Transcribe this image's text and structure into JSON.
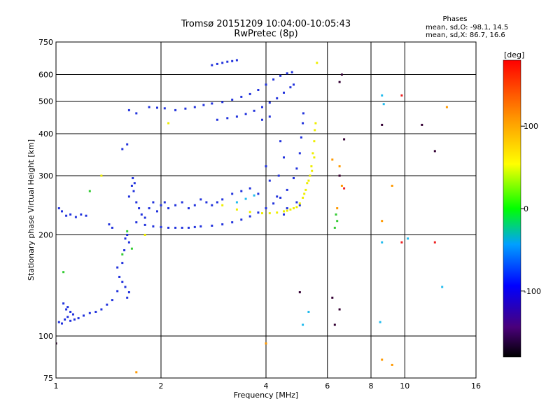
{
  "chart_data": {
    "type": "scatter",
    "title": "Tromsø 20151209 10:04:00-10:05:43",
    "subtitle": "RwPretec (8p)",
    "stats": {
      "heading": "Phases",
      "line_o": "mean, sd,O: -98.1, 14.5",
      "line_x": "mean, sd,X:  86.7, 16.6"
    },
    "xlabel": "Frequency [MHz]",
    "ylabel": "Stationary phase Virtual Height [km]",
    "x_scale": "log",
    "y_scale": "log",
    "xlim": [
      1,
      16
    ],
    "ylim": [
      75,
      750
    ],
    "x_ticks": [
      1,
      2,
      4,
      6,
      8,
      10,
      16
    ],
    "x_tick_labels": [
      "1",
      "2",
      "4",
      "6",
      "8",
      "10",
      "16"
    ],
    "y_ticks": [
      75,
      100,
      200,
      300,
      400,
      500,
      600,
      750
    ],
    "y_tick_labels": [
      "75",
      "100",
      "200",
      "300",
      "400",
      "500",
      "600",
      "750"
    ],
    "grid": true,
    "colorbar": {
      "label": "[deg]",
      "range": [
        -180,
        180
      ],
      "ticks": [
        100,
        0,
        -100
      ],
      "tick_labels": [
        "100",
        "0",
        "-100"
      ]
    },
    "colors": {
      "blue": "#2233dd",
      "yellow": "#eeee00",
      "cyan": "#22bbee",
      "green": "#33cc33",
      "orange": "#ff9900",
      "red": "#ee2222",
      "dark": "#330033",
      "gray": "#888888"
    },
    "series": [
      {
        "color": "blue",
        "points": [
          [
            1.02,
            110
          ],
          [
            1.04,
            109
          ],
          [
            1.06,
            112
          ],
          [
            1.08,
            114
          ],
          [
            1.1,
            111
          ],
          [
            1.13,
            112
          ],
          [
            1.16,
            113
          ],
          [
            1.2,
            115
          ],
          [
            1.25,
            117
          ],
          [
            1.3,
            118
          ],
          [
            1.35,
            120
          ],
          [
            1.4,
            124
          ],
          [
            1.45,
            128
          ],
          [
            1.5,
            136
          ],
          [
            1.52,
            150
          ],
          [
            1.55,
            165
          ],
          [
            1.57,
            180
          ],
          [
            1.58,
            195
          ],
          [
            1.6,
            200
          ],
          [
            1.62,
            190
          ],
          [
            1.58,
            140
          ],
          [
            1.6,
            130
          ],
          [
            1.62,
            135
          ],
          [
            1.55,
            145
          ],
          [
            1.5,
            160
          ],
          [
            1.05,
            125
          ],
          [
            1.08,
            122
          ],
          [
            1.1,
            118
          ],
          [
            1.12,
            116
          ],
          [
            1.07,
            120
          ],
          [
            1.02,
            240
          ],
          [
            1.04,
            235
          ],
          [
            1.07,
            228
          ],
          [
            1.1,
            230
          ],
          [
            1.14,
            226
          ],
          [
            1.18,
            230
          ],
          [
            1.22,
            228
          ],
          [
            1.62,
            260
          ],
          [
            1.65,
            280
          ],
          [
            1.67,
            270
          ],
          [
            1.7,
            250
          ],
          [
            1.73,
            240
          ],
          [
            1.76,
            230
          ],
          [
            1.8,
            225
          ],
          [
            1.85,
            240
          ],
          [
            1.9,
            250
          ],
          [
            1.95,
            235
          ],
          [
            2.0,
            245
          ],
          [
            2.05,
            250
          ],
          [
            2.1,
            240
          ],
          [
            2.2,
            245
          ],
          [
            2.3,
            250
          ],
          [
            2.4,
            240
          ],
          [
            2.5,
            245
          ],
          [
            2.6,
            255
          ],
          [
            2.7,
            250
          ],
          [
            2.8,
            245
          ],
          [
            2.9,
            250
          ],
          [
            3.0,
            255
          ],
          [
            3.2,
            265
          ],
          [
            3.4,
            270
          ],
          [
            3.6,
            275
          ],
          [
            3.8,
            265
          ],
          [
            1.66,
            295
          ],
          [
            1.68,
            285
          ],
          [
            1.7,
            218
          ],
          [
            1.8,
            214
          ],
          [
            1.9,
            212
          ],
          [
            2.0,
            211
          ],
          [
            2.1,
            210
          ],
          [
            2.2,
            210
          ],
          [
            2.3,
            210
          ],
          [
            2.4,
            210
          ],
          [
            2.5,
            211
          ],
          [
            2.6,
            212
          ],
          [
            2.8,
            213
          ],
          [
            3.0,
            215
          ],
          [
            3.2,
            218
          ],
          [
            3.4,
            222
          ],
          [
            3.6,
            227
          ],
          [
            3.8,
            233
          ],
          [
            4.0,
            240
          ],
          [
            4.2,
            248
          ],
          [
            4.4,
            258
          ],
          [
            4.6,
            272
          ],
          [
            4.8,
            295
          ],
          [
            4.9,
            315
          ],
          [
            5.0,
            350
          ],
          [
            5.05,
            390
          ],
          [
            5.1,
            430
          ],
          [
            5.12,
            460
          ],
          [
            2.8,
            640
          ],
          [
            2.9,
            645
          ],
          [
            3.0,
            650
          ],
          [
            3.1,
            655
          ],
          [
            3.2,
            658
          ],
          [
            3.3,
            662
          ],
          [
            2.9,
            440
          ],
          [
            3.1,
            445
          ],
          [
            3.3,
            450
          ],
          [
            3.5,
            458
          ],
          [
            3.7,
            468
          ],
          [
            3.9,
            480
          ],
          [
            4.1,
            495
          ],
          [
            4.3,
            510
          ],
          [
            4.5,
            530
          ],
          [
            4.7,
            550
          ],
          [
            4.8,
            560
          ],
          [
            1.85,
            480
          ],
          [
            1.95,
            478
          ],
          [
            2.05,
            476
          ],
          [
            2.2,
            470
          ],
          [
            2.35,
            475
          ],
          [
            2.5,
            480
          ],
          [
            2.65,
            487
          ],
          [
            2.8,
            492
          ],
          [
            3.0,
            497
          ],
          [
            3.2,
            505
          ],
          [
            3.4,
            515
          ],
          [
            3.6,
            525
          ],
          [
            3.8,
            540
          ],
          [
            4.0,
            560
          ],
          [
            4.2,
            580
          ],
          [
            4.4,
            595
          ],
          [
            4.6,
            605
          ],
          [
            4.75,
            610
          ],
          [
            1.45,
            210
          ],
          [
            1.42,
            215
          ],
          [
            4.5,
            230
          ],
          [
            4.6,
            240
          ],
          [
            4.3,
            260
          ],
          [
            4.1,
            290
          ],
          [
            4.0,
            320
          ],
          [
            4.5,
            340
          ],
          [
            4.4,
            380
          ],
          [
            4.35,
            300
          ],
          [
            1.55,
            360
          ],
          [
            1.6,
            372
          ],
          [
            5.0,
            245
          ],
          [
            4.9,
            250
          ],
          [
            3.9,
            440
          ],
          [
            4.1,
            450
          ],
          [
            1.7,
            460
          ],
          [
            1.62,
            470
          ]
        ]
      },
      {
        "color": "yellow",
        "points": [
          [
            3.0,
            245
          ],
          [
            3.3,
            238
          ],
          [
            3.6,
            234
          ],
          [
            3.9,
            232
          ],
          [
            4.1,
            232
          ],
          [
            4.3,
            233
          ],
          [
            4.5,
            235
          ],
          [
            4.7,
            238
          ],
          [
            4.9,
            242
          ],
          [
            5.0,
            248
          ],
          [
            5.1,
            258
          ],
          [
            5.2,
            272
          ],
          [
            5.3,
            290
          ],
          [
            5.4,
            320
          ],
          [
            5.45,
            350
          ],
          [
            5.5,
            380
          ],
          [
            5.52,
            410
          ],
          [
            5.55,
            430
          ],
          [
            5.5,
            340
          ],
          [
            5.42,
            310
          ],
          [
            5.35,
            300
          ],
          [
            5.25,
            285
          ],
          [
            5.15,
            265
          ],
          [
            4.8,
            240
          ],
          [
            4.6,
            236
          ],
          [
            5.6,
            650
          ],
          [
            1.35,
            300
          ],
          [
            1.8,
            200
          ],
          [
            2.1,
            430
          ]
        ]
      },
      {
        "color": "cyan",
        "points": [
          [
            3.5,
            256
          ],
          [
            3.7,
            262
          ],
          [
            3.3,
            250
          ],
          [
            8.6,
            520
          ],
          [
            8.7,
            490
          ],
          [
            8.6,
            190
          ],
          [
            10.2,
            195
          ],
          [
            12.8,
            140
          ],
          [
            8.5,
            110
          ],
          [
            5.1,
            108
          ],
          [
            5.3,
            118
          ]
        ]
      },
      {
        "color": "green",
        "points": [
          [
            1.05,
            155
          ],
          [
            1.6,
            205
          ],
          [
            1.55,
            175
          ],
          [
            6.3,
            210
          ],
          [
            6.4,
            220
          ],
          [
            1.25,
            270
          ],
          [
            1.65,
            182
          ],
          [
            6.35,
            230
          ]
        ]
      },
      {
        "color": "orange",
        "points": [
          [
            6.6,
            280
          ],
          [
            6.4,
            240
          ],
          [
            9.2,
            280
          ],
          [
            8.6,
            220
          ],
          [
            8.6,
            85
          ],
          [
            9.2,
            82
          ],
          [
            13.2,
            480
          ],
          [
            6.2,
            335
          ],
          [
            4.0,
            95
          ],
          [
            1.7,
            78
          ],
          [
            6.5,
            320
          ]
        ]
      },
      {
        "color": "red",
        "points": [
          [
            9.8,
            190
          ],
          [
            12.2,
            190
          ],
          [
            9.8,
            520
          ],
          [
            6.7,
            275
          ],
          [
            6.5,
            300
          ]
        ]
      },
      {
        "color": "dark",
        "points": [
          [
            6.6,
            600
          ],
          [
            6.5,
            570
          ],
          [
            6.7,
            385
          ],
          [
            6.5,
            300
          ],
          [
            5.0,
            135
          ],
          [
            6.2,
            130
          ],
          [
            6.5,
            120
          ],
          [
            12.2,
            355
          ],
          [
            8.6,
            425
          ],
          [
            1.0,
            95
          ],
          [
            11.2,
            425
          ],
          [
            6.3,
            108
          ]
        ]
      }
    ]
  }
}
